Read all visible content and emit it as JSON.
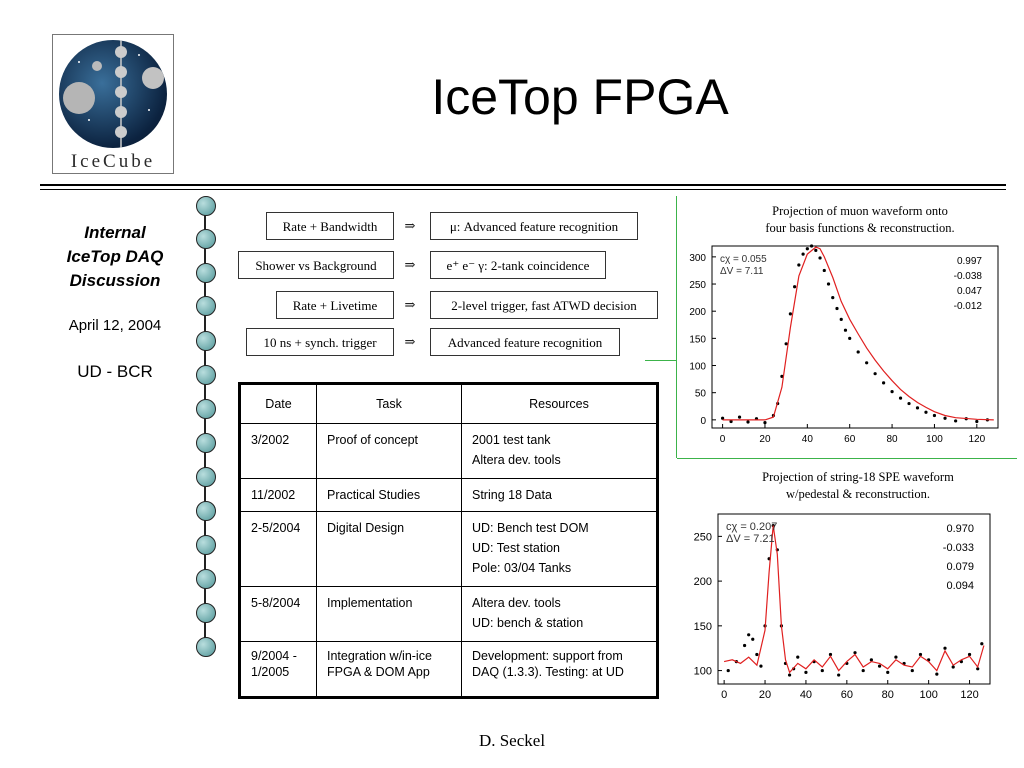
{
  "title": "IceTop FPGA",
  "logo": {
    "text": "IceCube"
  },
  "sidebar": {
    "title_lines": [
      "Internal",
      "IceTop DAQ",
      "Discussion"
    ],
    "date": "April 12, 2004",
    "group": "UD - BCR"
  },
  "features": [
    {
      "left": "Rate + Bandwidth",
      "arrow": "⇒",
      "right": "μ:  Advanced feature recognition"
    },
    {
      "left": "Shower vs Background",
      "arrow": "⇒",
      "right": "e⁺ e⁻ γ:  2-tank coincidence"
    },
    {
      "left": "Rate + Livetime",
      "arrow": "⇒",
      "right": "2-level trigger, fast ATWD decision"
    },
    {
      "left": "10 ns + synch. trigger",
      "arrow": "⇒",
      "right": "Advanced feature recognition"
    }
  ],
  "table": {
    "headers": [
      "Date",
      "Task",
      "Resources"
    ],
    "rows": [
      {
        "date": "3/2002",
        "task": "Proof of concept",
        "resources": [
          "2001 test tank",
          "Altera dev. tools"
        ]
      },
      {
        "date": "11/2002",
        "task": "Practical Studies",
        "resources": [
          "String 18 Data"
        ]
      },
      {
        "date": "2-5/2004",
        "task": "Digital Design",
        "resources": [
          "UD: Bench test DOM",
          "UD: Test station",
          "Pole: 03/04 Tanks"
        ]
      },
      {
        "date": "5-8/2004",
        "task": "Implementation",
        "resources": [
          "Altera dev. tools",
          "UD: bench & station"
        ]
      },
      {
        "date": "9/2004 - 1/2005",
        "task": "Integration w/in-ice FPGA & DOM App",
        "resources": [
          "Development: support from DAQ (1.3.3). Testing: at UD"
        ]
      }
    ]
  },
  "chart_data": [
    {
      "type": "scatter",
      "title": "Projection of muon waveform onto four basis functions & reconstruction.",
      "title_lines": [
        "Projection of muon waveform onto",
        "four basis functions & reconstruction."
      ],
      "xlim": [
        -5,
        130
      ],
      "ylim": [
        -15,
        320
      ],
      "x_ticks": [
        0,
        20,
        40,
        60,
        80,
        100,
        120
      ],
      "y_ticks": [
        0,
        50,
        100,
        150,
        200,
        250,
        300
      ],
      "annotations": [
        "cχ = 0.055",
        "ΔV = 7.11"
      ],
      "coefficients": [
        "0.997",
        "-0.038",
        "0.047",
        "-0.012"
      ],
      "series": [
        {
          "style": "points",
          "color": "#000000",
          "x": [
            0,
            4,
            8,
            12,
            16,
            20,
            24,
            26,
            28,
            30,
            32,
            34,
            36,
            38,
            40,
            42,
            44,
            46,
            48,
            50,
            52,
            54,
            56,
            58,
            60,
            64,
            68,
            72,
            76,
            80,
            84,
            88,
            92,
            96,
            100,
            105,
            110,
            115,
            120,
            125
          ],
          "values": [
            3,
            -3,
            5,
            -4,
            2,
            -5,
            8,
            30,
            80,
            140,
            195,
            245,
            285,
            305,
            315,
            320,
            312,
            298,
            275,
            250,
            225,
            205,
            185,
            165,
            150,
            125,
            105,
            85,
            68,
            52,
            40,
            30,
            22,
            14,
            8,
            3,
            -2,
            2,
            -3,
            0
          ]
        },
        {
          "style": "line",
          "color": "#e02020",
          "x": [
            0,
            10,
            20,
            24,
            28,
            32,
            36,
            40,
            44,
            46,
            48,
            52,
            56,
            60,
            64,
            68,
            72,
            76,
            80,
            84,
            88,
            92,
            96,
            100,
            105,
            110,
            120,
            128
          ],
          "values": [
            0,
            0,
            0,
            5,
            60,
            170,
            265,
            305,
            318,
            315,
            300,
            262,
            218,
            185,
            158,
            132,
            110,
            90,
            72,
            56,
            43,
            32,
            23,
            15,
            8,
            4,
            1,
            0
          ]
        }
      ]
    },
    {
      "type": "scatter",
      "title": "Projection of string-18 SPE waveform w/pedestal & reconstruction.",
      "title_lines": [
        "Projection of string-18 SPE waveform",
        "w/pedestal & reconstruction."
      ],
      "xlim": [
        -3,
        130
      ],
      "ylim": [
        85,
        275
      ],
      "x_ticks": [
        0,
        20,
        40,
        60,
        80,
        100,
        120
      ],
      "y_ticks": [
        100,
        150,
        200,
        250
      ],
      "annotations": [
        "cχ = 0.207",
        "ΔV = 7.21"
      ],
      "coefficients": [
        "0.970",
        "-0.033",
        "0.079",
        "0.094"
      ],
      "series": [
        {
          "style": "points",
          "color": "#000000",
          "x": [
            2,
            6,
            10,
            12,
            14,
            16,
            18,
            20,
            22,
            24,
            26,
            28,
            30,
            32,
            34,
            36,
            40,
            44,
            48,
            52,
            56,
            60,
            64,
            68,
            72,
            76,
            80,
            84,
            88,
            92,
            96,
            100,
            104,
            108,
            112,
            116,
            120,
            124,
            126
          ],
          "values": [
            100,
            110,
            128,
            140,
            135,
            118,
            105,
            150,
            225,
            262,
            235,
            150,
            108,
            95,
            102,
            115,
            98,
            110,
            100,
            118,
            95,
            108,
            120,
            100,
            112,
            105,
            98,
            115,
            108,
            100,
            118,
            112,
            96,
            125,
            104,
            110,
            118,
            102,
            130
          ]
        },
        {
          "style": "line",
          "color": "#e02020",
          "x": [
            0,
            4,
            8,
            12,
            16,
            20,
            22,
            24,
            26,
            28,
            30,
            32,
            36,
            40,
            44,
            48,
            52,
            56,
            60,
            64,
            68,
            72,
            76,
            80,
            84,
            88,
            92,
            96,
            100,
            104,
            108,
            112,
            116,
            120,
            124,
            127
          ],
          "values": [
            110,
            112,
            108,
            115,
            106,
            145,
            210,
            262,
            230,
            150,
            112,
            98,
            108,
            102,
            112,
            104,
            116,
            100,
            110,
            118,
            104,
            110,
            108,
            102,
            112,
            106,
            104,
            116,
            110,
            100,
            122,
            106,
            112,
            116,
            104,
            128
          ]
        }
      ]
    }
  ],
  "footer": "D. Seckel"
}
